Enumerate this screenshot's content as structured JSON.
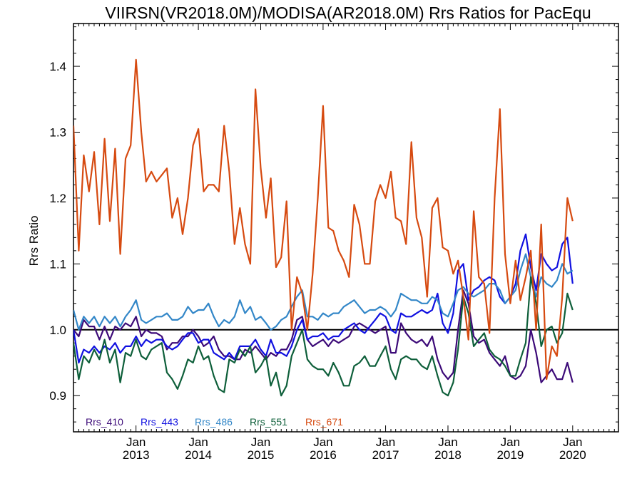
{
  "chart_data": {
    "type": "line",
    "title": "VIIRSN(VR2018.0M)/MODISA(AR2018.0M)  Rrs Ratios for PacEqu",
    "xlabel": "",
    "ylabel": "Rrs Ratio",
    "x_start": "2012-01",
    "xlim": [
      "2012-01-01",
      "2020-09-25"
    ],
    "ylim": [
      0.845,
      1.465
    ],
    "yticks": [
      0.9,
      1.0,
      1.1,
      1.2,
      1.3,
      1.4
    ],
    "ytick_labels": [
      "0.9",
      "1.0",
      "1.1",
      "1.2",
      "1.3",
      "1.4"
    ],
    "xticks": [
      {
        "date": "2013-01",
        "line1": "Jan",
        "line2": "2013"
      },
      {
        "date": "2014-01",
        "line1": "Jan",
        "line2": "2014"
      },
      {
        "date": "2015-01",
        "line1": "Jan",
        "line2": "2015"
      },
      {
        "date": "2016-01",
        "line1": "Jan",
        "line2": "2016"
      },
      {
        "date": "2017-01",
        "line1": "Jan",
        "line2": "2017"
      },
      {
        "date": "2018-01",
        "line1": "Jan",
        "line2": "2018"
      },
      {
        "date": "2019-01",
        "line1": "Jan",
        "line2": "2019"
      },
      {
        "date": "2020-01",
        "line1": "Jan",
        "line2": "2020"
      }
    ],
    "reference_line": 1.0,
    "legend_position": "bottom-left",
    "series": [
      {
        "name": "Rrs_410",
        "color": "#3c0a78",
        "values": [
          1.0,
          0.99,
          1.015,
          1.005,
          1.005,
          0.985,
          1.005,
          0.985,
          1.005,
          1.0,
          1.01,
          1.005,
          1.02,
          0.99,
          1.0,
          0.995,
          0.995,
          0.99,
          0.97,
          0.98,
          0.98,
          0.99,
          0.99,
          1.0,
          0.99,
          0.975,
          0.98,
          0.99,
          0.97,
          0.96,
          0.96,
          0.955,
          0.955,
          0.97,
          0.965,
          0.975,
          0.965,
          0.955,
          0.965,
          0.96,
          0.97,
          0.97,
          0.985,
          1.015,
          1.02,
          0.985,
          0.975,
          0.98,
          0.985,
          0.975,
          0.985,
          0.98,
          0.985,
          0.99,
          1.005,
          1.01,
          1.005,
          1.0,
          0.995,
          1.0,
          1.005,
          0.965,
          0.965,
          1.01,
          0.995,
          0.985,
          0.98,
          0.985,
          0.975,
          0.99,
          0.955,
          0.935,
          0.925,
          0.935,
          1.0,
          1.06,
          1.04,
          0.99,
          0.98,
          0.985,
          0.965,
          0.955,
          0.945,
          0.96,
          0.93,
          0.925,
          0.93,
          0.945,
          1.0,
          0.965,
          0.92,
          0.93,
          0.94,
          0.925,
          0.925,
          0.95,
          0.92
        ]
      },
      {
        "name": "Rrs_443",
        "color": "#1010e0",
        "values": [
          1.0,
          0.95,
          0.97,
          0.965,
          0.975,
          0.965,
          0.975,
          0.97,
          0.98,
          0.965,
          0.975,
          0.975,
          0.99,
          0.975,
          0.985,
          0.98,
          0.985,
          0.985,
          0.975,
          0.97,
          0.975,
          0.985,
          0.995,
          0.995,
          0.98,
          0.985,
          0.985,
          0.965,
          0.96,
          0.955,
          0.965,
          0.955,
          0.975,
          0.975,
          0.975,
          0.985,
          0.97,
          0.96,
          0.985,
          0.965,
          0.965,
          0.96,
          0.975,
          1.0,
          1.015,
          0.985,
          0.99,
          0.99,
          0.995,
          0.985,
          0.99,
          0.99,
          1.0,
          1.005,
          1.01,
          1.0,
          0.995,
          1.005,
          1.015,
          1.025,
          1.02,
          1.0,
          0.995,
          1.025,
          1.02,
          1.02,
          1.025,
          1.03,
          1.025,
          1.03,
          1.055,
          1.01,
          0.995,
          1.025,
          1.09,
          1.1,
          1.045,
          1.06,
          1.065,
          1.075,
          1.08,
          1.075,
          1.05,
          1.04,
          1.05,
          1.07,
          1.12,
          1.145,
          1.095,
          1.06,
          1.115,
          1.1,
          1.09,
          1.095,
          1.13,
          1.14,
          1.07
        ]
      },
      {
        "name": "Rrs_486",
        "color": "#3387c8",
        "values": [
          1.03,
          1.0,
          1.02,
          1.01,
          1.02,
          1.005,
          1.02,
          1.01,
          1.02,
          1.005,
          1.02,
          1.03,
          1.045,
          1.015,
          1.01,
          1.015,
          1.02,
          1.02,
          1.025,
          1.015,
          1.015,
          1.02,
          1.035,
          1.025,
          1.03,
          1.03,
          1.04,
          1.02,
          1.005,
          1.015,
          1.01,
          1.02,
          1.045,
          1.025,
          1.035,
          1.015,
          1.02,
          1.01,
          1.0,
          1.005,
          1.015,
          1.02,
          1.035,
          1.05,
          1.06,
          1.02,
          1.02,
          1.015,
          1.025,
          1.02,
          1.025,
          1.025,
          1.035,
          1.04,
          1.045,
          1.035,
          1.025,
          1.03,
          1.03,
          1.035,
          1.03,
          1.02,
          1.03,
          1.055,
          1.05,
          1.045,
          1.045,
          1.04,
          1.04,
          1.05,
          1.045,
          1.025,
          1.02,
          1.04,
          1.06,
          1.065,
          1.055,
          1.05,
          1.055,
          1.06,
          1.07,
          1.07,
          1.06,
          1.04,
          1.05,
          1.06,
          1.09,
          1.115,
          1.08,
          1.05,
          1.08,
          1.07,
          1.065,
          1.075,
          1.1,
          1.085,
          1.09
        ]
      },
      {
        "name": "Rrs_551",
        "color": "#0e5f3a",
        "values": [
          0.98,
          0.925,
          0.96,
          0.95,
          0.97,
          0.955,
          0.985,
          0.95,
          0.97,
          0.92,
          0.965,
          0.96,
          0.985,
          0.96,
          0.955,
          0.97,
          0.975,
          0.98,
          0.935,
          0.925,
          0.91,
          0.93,
          0.955,
          0.95,
          0.975,
          0.955,
          0.96,
          0.93,
          0.91,
          0.905,
          0.955,
          0.95,
          0.97,
          0.96,
          0.975,
          0.935,
          0.945,
          0.96,
          0.915,
          0.935,
          0.9,
          0.915,
          0.96,
          0.98,
          1.0,
          0.955,
          0.945,
          0.94,
          0.94,
          0.93,
          0.95,
          0.935,
          0.915,
          0.915,
          0.945,
          0.95,
          0.96,
          0.945,
          0.945,
          0.96,
          0.975,
          0.94,
          0.925,
          0.955,
          0.96,
          0.955,
          0.955,
          0.945,
          0.94,
          0.96,
          0.93,
          0.905,
          0.9,
          0.92,
          0.97,
          1.05,
          1.025,
          0.975,
          0.985,
          0.995,
          0.97,
          0.96,
          0.955,
          0.945,
          0.93,
          0.93,
          0.955,
          0.98,
          1.08,
          1.04,
          0.975,
          1.0,
          1.005,
          0.98,
          0.995,
          1.055,
          1.03
        ]
      },
      {
        "name": "Rrs_671",
        "color": "#d64a10",
        "values": [
          1.31,
          1.12,
          1.265,
          1.21,
          1.27,
          1.16,
          1.29,
          1.165,
          1.275,
          1.115,
          1.26,
          1.28,
          1.41,
          1.3,
          1.225,
          1.24,
          1.225,
          1.235,
          1.245,
          1.17,
          1.2,
          1.145,
          1.2,
          1.28,
          1.305,
          1.21,
          1.22,
          1.22,
          1.21,
          1.31,
          1.24,
          1.13,
          1.185,
          1.13,
          1.1,
          1.365,
          1.245,
          1.17,
          1.23,
          1.095,
          1.11,
          1.195,
          1.0,
          1.08,
          1.055,
          1.0,
          1.085,
          1.2,
          1.34,
          1.155,
          1.15,
          1.12,
          1.105,
          1.08,
          1.19,
          1.16,
          1.1,
          1.1,
          1.195,
          1.22,
          1.2,
          1.24,
          1.17,
          1.165,
          1.13,
          1.285,
          1.17,
          1.14,
          1.05,
          1.185,
          1.2,
          1.125,
          1.12,
          1.085,
          1.105,
          1.05,
          0.985,
          1.18,
          1.08,
          1.07,
          0.995,
          1.2,
          1.335,
          1.115,
          1.04,
          1.105,
          1.045,
          1.08,
          1.12,
          1.0,
          1.16,
          0.925,
          0.975,
          0.96,
          1.05,
          1.2,
          1.165
        ]
      }
    ]
  }
}
